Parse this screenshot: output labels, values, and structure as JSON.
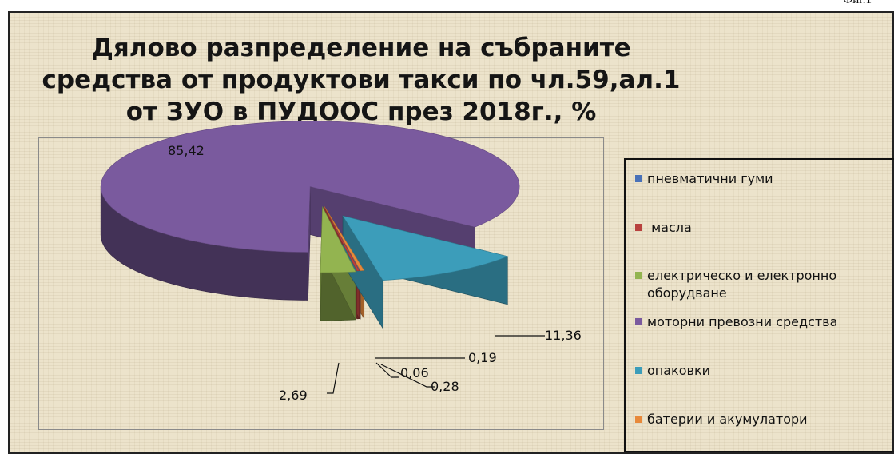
{
  "figure_label": "Фиг.1",
  "chart_data": {
    "type": "pie",
    "title_lines": [
      "Дялово разпределение на събраните",
      "средства от продуктови такси по чл.59,ал.1",
      "от ЗУО в ПУДООС през 2018г., %"
    ],
    "slices": [
      {
        "name": "пневматични гуми",
        "value": 0.06,
        "label": "0,06",
        "color": "#4a72b8"
      },
      {
        "name": " масла",
        "value": 0.19,
        "label": "0,19",
        "color": "#b8413e"
      },
      {
        "name": "електрическо и електронно оборудване",
        "value": 2.69,
        "label": "2,69",
        "color": "#93b450"
      },
      {
        "name": "моторни превозни средства",
        "value": 85.42,
        "label": "85,42",
        "color": "#7a5a9e"
      },
      {
        "name": "опаковки",
        "value": 11.36,
        "label": "11,36",
        "color": "#3c9dba"
      },
      {
        "name": "батерии и акумулатори",
        "value": 0.28,
        "label": "0,28",
        "color": "#e8893a"
      }
    ],
    "legend_position": "right"
  }
}
